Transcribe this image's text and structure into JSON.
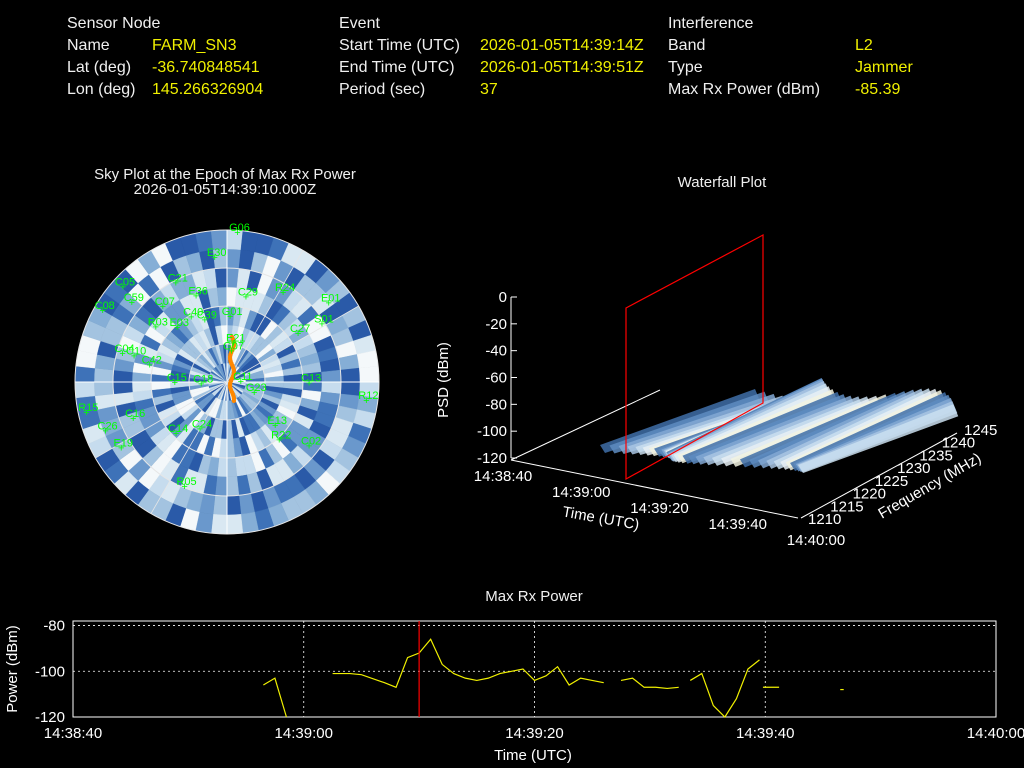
{
  "sensor": {
    "header": "Sensor Node",
    "name_label": "Name",
    "name_value": "FARM_SN3",
    "lat_label": "Lat (deg)",
    "lat_value": "-36.740848541",
    "lon_label": "Lon (deg)",
    "lon_value": "145.266326904"
  },
  "event": {
    "header": "Event",
    "start_label": "Start Time (UTC)",
    "start_value": "2026-01-05T14:39:14Z",
    "end_label": "End Time (UTC)",
    "end_value": "2026-01-05T14:39:51Z",
    "period_label": "Period (sec)",
    "period_value": "37"
  },
  "interference": {
    "header": "Interference",
    "band_label": "Band",
    "band_value": "L2",
    "type_label": "Type",
    "type_value": "Jammer",
    "power_label": "Max Rx Power (dBm)",
    "power_value": "-85.39"
  },
  "colors": {
    "label": "#f0f0f0",
    "value": "#f0f000",
    "satellite": "#00ff00",
    "marker": "#ff0000",
    "track": "#ff8800",
    "series": "#f0f000"
  },
  "chart_data": [
    {
      "type": "scatter",
      "title": "Sky Plot at the Epoch of Max Rx Power",
      "subtitle": "2026-01-05T14:39:10.000Z",
      "projection": "polar (azimuth / elevation)",
      "satellites": [
        {
          "name": "G06",
          "az": 5,
          "el": 5
        },
        {
          "name": "E30",
          "az": 355,
          "el": 20
        },
        {
          "name": "C21",
          "az": 332,
          "el": 28
        },
        {
          "name": "C40",
          "az": 330,
          "el": 50
        },
        {
          "name": "E36",
          "az": 340,
          "el": 40
        },
        {
          "name": "C05",
          "az": 311,
          "el": 10
        },
        {
          "name": "C59",
          "az": 308,
          "el": 20
        },
        {
          "name": "C07",
          "az": 318,
          "el": 35
        },
        {
          "name": "C08",
          "az": 298,
          "el": 8
        },
        {
          "name": "R03",
          "az": 305,
          "el": 40
        },
        {
          "name": "C39",
          "az": 340,
          "el": 55
        },
        {
          "name": "E03",
          "az": 315,
          "el": 50
        },
        {
          "name": "G01",
          "az": 5,
          "el": 55
        },
        {
          "name": "C29",
          "az": 15,
          "el": 42
        },
        {
          "name": "R24",
          "az": 35,
          "el": 30
        },
        {
          "name": "E01",
          "az": 55,
          "el": 15
        },
        {
          "name": "S01",
          "az": 62,
          "el": 25
        },
        {
          "name": "C27",
          "az": 60,
          "el": 40
        },
        {
          "name": "E21",
          "az": 15,
          "el": 70
        },
        {
          "name": "G07",
          "az": 15,
          "el": 75
        },
        {
          "name": "C10",
          "az": 282,
          "el": 35
        },
        {
          "name": "C04",
          "az": 282,
          "el": 28
        },
        {
          "name": "C42",
          "az": 278,
          "el": 45
        },
        {
          "name": "C15",
          "az": 262,
          "el": 60
        },
        {
          "name": "C18",
          "az": 250,
          "el": 75
        },
        {
          "name": "C11",
          "az": 110,
          "el": 80
        },
        {
          "name": "C13",
          "az": 95,
          "el": 40
        },
        {
          "name": "R12",
          "az": 100,
          "el": 5
        },
        {
          "name": "R15",
          "az": 255,
          "el": 5
        },
        {
          "name": "C16",
          "az": 245,
          "el": 30
        },
        {
          "name": "C14",
          "az": 220,
          "el": 45
        },
        {
          "name": "C26",
          "az": 245,
          "el": 12
        },
        {
          "name": "E19",
          "az": 235,
          "el": 15
        },
        {
          "name": "G23",
          "az": 120,
          "el": 70
        },
        {
          "name": "E13",
          "az": 135,
          "el": 48
        },
        {
          "name": "C02",
          "az": 130,
          "el": 25
        },
        {
          "name": "R22",
          "az": 140,
          "el": 40
        },
        {
          "name": "R05",
          "az": 200,
          "el": 20
        },
        {
          "name": "C24",
          "az": 205,
          "el": 55
        }
      ]
    },
    {
      "type": "area",
      "title": "Waterfall Plot",
      "zlabel": "PSD (dBm)",
      "xlabel": "Time (UTC)",
      "ylabel": "Frequency (MHz)",
      "z_ticks": [
        "0",
        "-20",
        "-40",
        "-60",
        "-80",
        "-100",
        "-120"
      ],
      "time_ticks": [
        "14:38:40",
        "14:39:00",
        "14:39:20",
        "14:39:40",
        "14:40:00"
      ],
      "freq_ticks": [
        "1210",
        "1215",
        "1220",
        "1225",
        "1230",
        "1235",
        "1240",
        "1245"
      ],
      "zlim": [
        -120,
        0
      ],
      "marker_time": "14:39:10"
    },
    {
      "type": "line",
      "title": "Max Rx Power",
      "xlabel": "Time (UTC)",
      "ylabel": "Power (dBm)",
      "x_ticks": [
        "14:38:40",
        "14:39:00",
        "14:39:20",
        "14:39:40",
        "14:40:00"
      ],
      "y_ticks": [
        "-80",
        "-100",
        "-120"
      ],
      "xlim_sec": [
        0,
        80
      ],
      "ylim": [
        -120,
        -78
      ],
      "marker_sec": 30,
      "grid": true,
      "segments": [
        [
          [
            16.5,
            -106
          ],
          [
            17.5,
            -103
          ],
          [
            18.5,
            -120
          ]
        ],
        [
          [
            22.5,
            -101
          ],
          [
            24,
            -101
          ],
          [
            25,
            -101.5
          ],
          [
            27,
            -105
          ],
          [
            28,
            -107
          ],
          [
            29,
            -94
          ],
          [
            30,
            -92
          ],
          [
            31,
            -86
          ],
          [
            32,
            -97
          ],
          [
            33,
            -101
          ],
          [
            34,
            -103
          ],
          [
            35,
            -104
          ],
          [
            36,
            -103
          ],
          [
            37,
            -101
          ],
          [
            38,
            -100
          ],
          [
            39,
            -99
          ],
          [
            40,
            -104
          ],
          [
            41,
            -102
          ],
          [
            42,
            -98
          ],
          [
            43,
            -106
          ],
          [
            44,
            -103
          ],
          [
            45,
            -104
          ],
          [
            46,
            -105
          ]
        ],
        [
          [
            47.5,
            -104
          ],
          [
            48.5,
            -103
          ],
          [
            49.5,
            -107
          ],
          [
            50.5,
            -107
          ],
          [
            51.5,
            -107.5
          ],
          [
            52.5,
            -107
          ]
        ],
        [
          [
            53.5,
            -104
          ],
          [
            54.5,
            -101
          ],
          [
            55.5,
            -115
          ],
          [
            56.5,
            -120
          ],
          [
            57.5,
            -112
          ],
          [
            58.5,
            -99
          ],
          [
            59.5,
            -95
          ]
        ],
        [
          [
            59.8,
            -107
          ],
          [
            61.2,
            -107
          ]
        ],
        [
          [
            66.5,
            -108
          ],
          [
            66.8,
            -108
          ]
        ]
      ]
    }
  ]
}
